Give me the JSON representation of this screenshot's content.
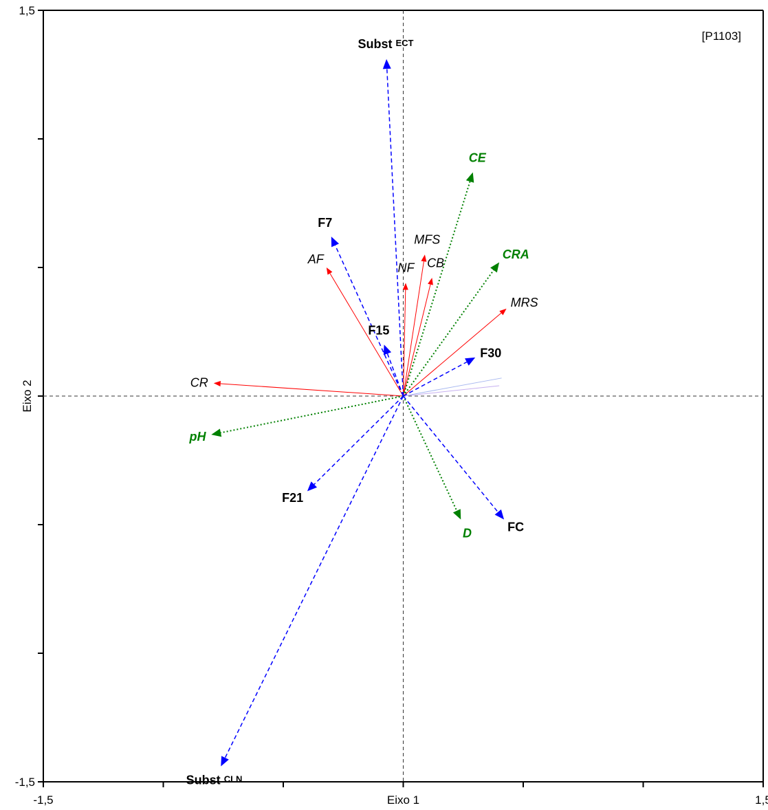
{
  "chart_data": {
    "type": "biplot",
    "corner_label": "[P1103]",
    "xlabel": "Eixo 1",
    "ylabel": "Eixo 2",
    "xlim": [
      -1.5,
      1.5
    ],
    "ylim": [
      -1.5,
      1.5
    ],
    "x_tick_labels": [
      {
        "value": -1.5,
        "label": "-1,5"
      },
      {
        "value": 0,
        "label": "Eixo 1"
      },
      {
        "value": 1.5,
        "label": "1,5"
      }
    ],
    "y_tick_labels": [
      {
        "value": 1.5,
        "label": "1,5"
      },
      {
        "value": -1.5,
        "label": "-1,5"
      }
    ],
    "x_ticks": [
      -1.5,
      -1.0,
      -0.5,
      0,
      0.5,
      1.0,
      1.5
    ],
    "y_ticks": [
      -1.5,
      -1.0,
      -0.5,
      0,
      0.5,
      1.0,
      1.5
    ],
    "colors": {
      "response": "#ff0000",
      "environmental": "#008000",
      "factor": "#0000ff"
    },
    "series": [
      {
        "style": "response",
        "vectors": [
          {
            "label": "CR",
            "x": -0.79,
            "y": 0.05
          },
          {
            "label": "AF",
            "x": -0.32,
            "y": 0.5
          },
          {
            "label": "NF",
            "x": 0.01,
            "y": 0.44
          },
          {
            "label": "MFS",
            "x": 0.09,
            "y": 0.55
          },
          {
            "label": "CB",
            "x": 0.12,
            "y": 0.46
          },
          {
            "label": "MRS",
            "x": 0.43,
            "y": 0.34
          }
        ]
      },
      {
        "style": "environmental",
        "vectors": [
          {
            "label": "CE",
            "x": 0.29,
            "y": 0.87
          },
          {
            "label": "CRA",
            "x": 0.4,
            "y": 0.52
          },
          {
            "label": "pH",
            "x": -0.8,
            "y": -0.15
          },
          {
            "label": "D",
            "x": 0.24,
            "y": -0.48
          }
        ]
      },
      {
        "style": "factor",
        "vectors": [
          {
            "label": "Subst",
            "sub": "ECT",
            "x": -0.07,
            "y": 1.31
          },
          {
            "label": "F7",
            "x": -0.3,
            "y": 0.62
          },
          {
            "label": "F15",
            "x": -0.08,
            "y": 0.2
          },
          {
            "label": "F30",
            "x": 0.3,
            "y": 0.15
          },
          {
            "label": "F21",
            "x": -0.4,
            "y": -0.37
          },
          {
            "label": "FC",
            "x": 0.42,
            "y": -0.48
          },
          {
            "label": "Subst",
            "sub": "CLN",
            "x": -0.76,
            "y": -1.44
          }
        ]
      }
    ]
  }
}
